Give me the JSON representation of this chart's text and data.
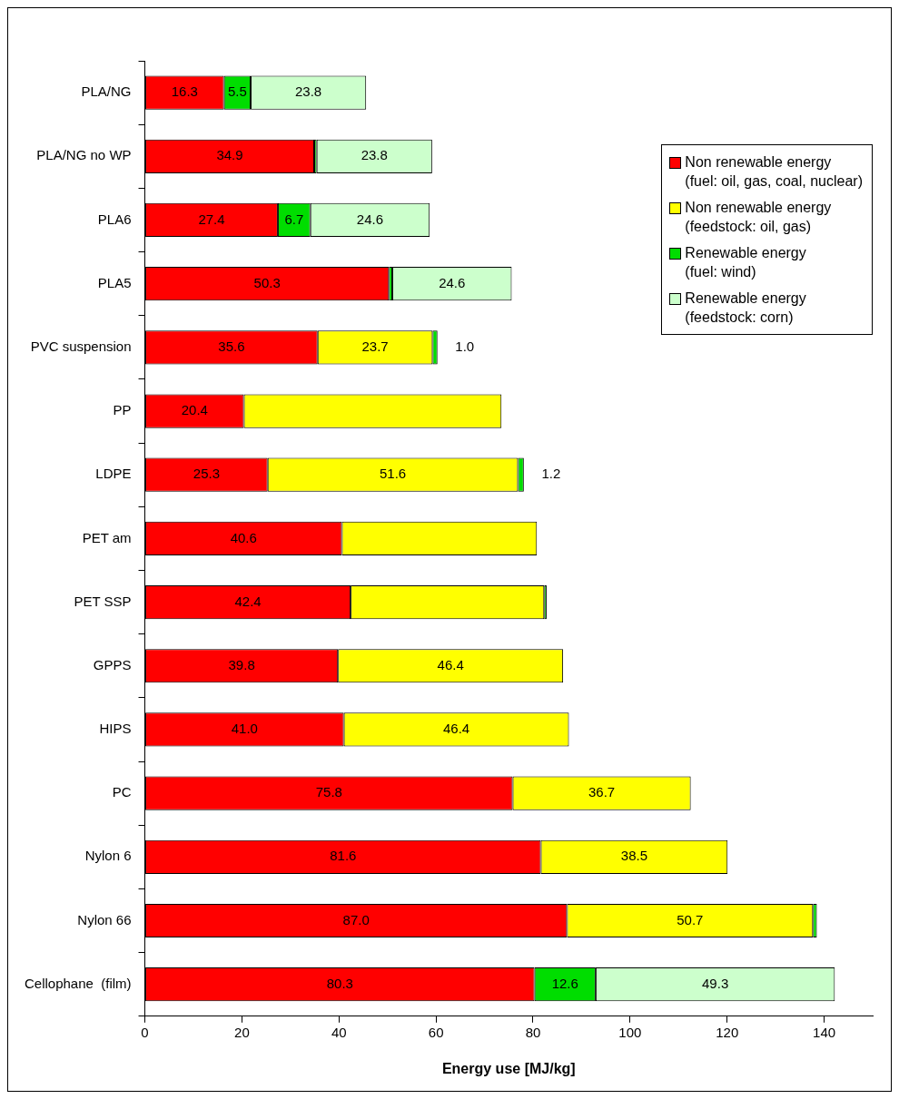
{
  "chart_data": {
    "type": "bar",
    "orientation": "horizontal",
    "stacked": true,
    "xlabel": "Energy use [MJ/kg]",
    "categories": [
      "PLA/NG",
      "PLA/NG no WP",
      "PLA6",
      "PLA5",
      "PVC suspension",
      "PP",
      "LDPE",
      "PET am",
      "PET SSP",
      "GPPS",
      "HIPS",
      "PC",
      "Nylon 6",
      "Nylon 66",
      "Cellophane  (film)"
    ],
    "series": [
      {
        "name": "Non renewable energy (fuel: oil, gas, coal, nuclear)",
        "color": "#ff0000",
        "values": [
          16.3,
          34.9,
          27.4,
          50.3,
          35.6,
          20.4,
          25.3,
          40.6,
          42.4,
          39.8,
          41.0,
          75.8,
          81.6,
          87.0,
          80.3
        ],
        "value_labels": [
          "16.3",
          "34.9",
          "27.4",
          "50.3",
          "35.6",
          "20.4",
          "25.3",
          "40.6",
          "42.4",
          "39.8",
          "41.0",
          "75.8",
          "81.6",
          "87.0",
          "80.3"
        ]
      },
      {
        "name": "Non renewable energy (feedstock: oil, gas)",
        "color": "#ffff00",
        "values": [
          null,
          null,
          null,
          null,
          23.7,
          53.1,
          51.6,
          40.2,
          39.9,
          46.4,
          46.4,
          36.7,
          38.5,
          50.7,
          null
        ],
        "value_labels": [
          null,
          null,
          null,
          null,
          "23.7",
          null,
          "51.6",
          null,
          null,
          "46.4",
          "46.4",
          "36.7",
          "38.5",
          "50.7",
          null
        ]
      },
      {
        "name": "Renewable energy (fuel: wind)",
        "color": "#00dd00",
        "values": [
          5.5,
          0.5,
          6.7,
          0.7,
          1.0,
          null,
          1.2,
          null,
          0.5,
          null,
          null,
          null,
          null,
          0.8,
          12.6
        ],
        "value_labels": [
          "5.5",
          null,
          "6.7",
          null,
          "1.0",
          null,
          "1.2",
          null,
          null,
          null,
          null,
          null,
          null,
          null,
          "12.6"
        ]
      },
      {
        "name": "Renewable energy (feedstock: corn)",
        "color": "#ccffcc",
        "values": [
          23.8,
          23.8,
          24.6,
          24.6,
          null,
          null,
          null,
          null,
          null,
          null,
          null,
          null,
          null,
          null,
          49.3
        ],
        "value_labels": [
          "23.8",
          "23.8",
          "24.6",
          "24.6",
          null,
          null,
          null,
          null,
          null,
          null,
          null,
          null,
          null,
          null,
          "49.3"
        ]
      }
    ],
    "xlim": [
      0,
      150
    ],
    "xticks": [
      0,
      20,
      40,
      60,
      80,
      100,
      120,
      140
    ],
    "legend": "top right"
  }
}
